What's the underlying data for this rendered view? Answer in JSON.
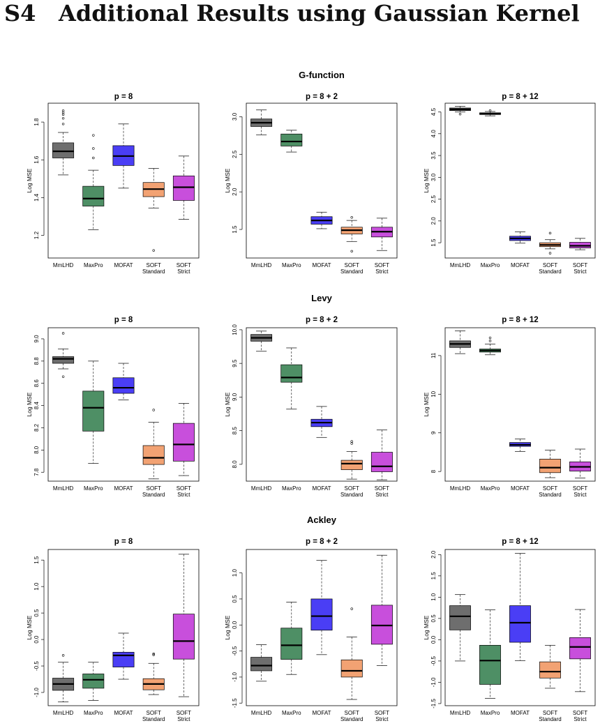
{
  "section": {
    "number": "S4",
    "title": "Additional Results using Gaussian Kernel"
  },
  "y_label": "Log MSE",
  "methods": [
    {
      "line1": "MmLHD",
      "line2": ""
    },
    {
      "line1": "MaxPro",
      "line2": ""
    },
    {
      "line1": "MOFAT",
      "line2": ""
    },
    {
      "line1": "SOFT",
      "line2": "Standard"
    },
    {
      "line1": "SOFT",
      "line2": "Strict"
    }
  ],
  "colors": [
    "#6e6e6e",
    "#4e8f65",
    "#4a3ef5",
    "#f2a273",
    "#c84fdc"
  ],
  "chart_data": [
    {
      "type": "boxplot",
      "group": "G-function",
      "title": "p = 8",
      "ylabel": "Log MSE",
      "ylim": [
        1.08,
        1.9
      ],
      "yticks": [
        1.2,
        1.4,
        1.6,
        1.8
      ],
      "categories": [
        "MmLHD",
        "MaxPro",
        "MOFAT",
        "SOFT Standard",
        "SOFT Strict"
      ],
      "boxes": [
        {
          "whislo": 1.52,
          "q1": 1.61,
          "med": 1.645,
          "q3": 1.69,
          "whishi": 1.745,
          "fliers": [
            1.79,
            1.82,
            1.84,
            1.85,
            1.86
          ]
        },
        {
          "whislo": 1.23,
          "q1": 1.355,
          "med": 1.395,
          "q3": 1.46,
          "whishi": 1.545,
          "fliers": [
            1.61,
            1.66,
            1.73
          ]
        },
        {
          "whislo": 1.45,
          "q1": 1.57,
          "med": 1.62,
          "q3": 1.675,
          "whishi": 1.79,
          "fliers": []
        },
        {
          "whislo": 1.345,
          "q1": 1.405,
          "med": 1.445,
          "q3": 1.48,
          "whishi": 1.555,
          "fliers": [
            1.12
          ]
        },
        {
          "whislo": 1.285,
          "q1": 1.385,
          "med": 1.455,
          "q3": 1.515,
          "whishi": 1.62,
          "fliers": []
        }
      ]
    },
    {
      "type": "boxplot",
      "group": "G-function",
      "title": "p = 8 + 2",
      "ylabel": "Log MSE",
      "ylim": [
        1.12,
        3.18
      ],
      "yticks": [
        1.5,
        2.0,
        2.5,
        3.0
      ],
      "categories": [
        "MmLHD",
        "MaxPro",
        "MOFAT",
        "SOFT Standard",
        "SOFT Strict"
      ],
      "boxes": [
        {
          "whislo": 2.76,
          "q1": 2.87,
          "med": 2.92,
          "q3": 2.97,
          "whishi": 3.09,
          "fliers": []
        },
        {
          "whislo": 2.53,
          "q1": 2.61,
          "med": 2.67,
          "q3": 2.77,
          "whishi": 2.82,
          "fliers": []
        },
        {
          "whislo": 1.51,
          "q1": 1.57,
          "med": 1.62,
          "q3": 1.67,
          "whishi": 1.73,
          "fliers": []
        },
        {
          "whislo": 1.34,
          "q1": 1.44,
          "med": 1.49,
          "q3": 1.53,
          "whishi": 1.62,
          "fliers": [
            1.21,
            1.66
          ]
        },
        {
          "whislo": 1.22,
          "q1": 1.4,
          "med": 1.47,
          "q3": 1.53,
          "whishi": 1.65,
          "fliers": []
        }
      ]
    },
    {
      "type": "boxplot",
      "group": "G-function",
      "title": "p = 8 + 12",
      "ylabel": "Log MSE",
      "ylim": [
        1.15,
        4.7
      ],
      "yticks": [
        1.5,
        2.0,
        2.5,
        3.0,
        3.5,
        4.0,
        4.5
      ],
      "categories": [
        "MmLHD",
        "MaxPro",
        "MOFAT",
        "SOFT Standard",
        "SOFT Strict"
      ],
      "boxes": [
        {
          "whislo": 4.5,
          "q1": 4.53,
          "med": 4.56,
          "q3": 4.59,
          "whishi": 4.63,
          "fliers": [
            4.45
          ]
        },
        {
          "whislo": 4.41,
          "q1": 4.44,
          "med": 4.46,
          "q3": 4.48,
          "whishi": 4.51,
          "fliers": [
            4.53
          ]
        },
        {
          "whislo": 1.49,
          "q1": 1.55,
          "med": 1.6,
          "q3": 1.65,
          "whishi": 1.75,
          "fliers": []
        },
        {
          "whislo": 1.36,
          "q1": 1.41,
          "med": 1.45,
          "q3": 1.5,
          "whishi": 1.57,
          "fliers": [
            1.26,
            1.72
          ]
        },
        {
          "whislo": 1.34,
          "q1": 1.38,
          "med": 1.43,
          "q3": 1.51,
          "whishi": 1.6,
          "fliers": []
        }
      ]
    },
    {
      "type": "boxplot",
      "group": "Levy",
      "title": "p = 8",
      "ylabel": "Log MSE",
      "ylim": [
        7.72,
        9.1
      ],
      "yticks": [
        7.8,
        8.0,
        8.2,
        8.4,
        8.6,
        8.8,
        9.0
      ],
      "categories": [
        "MmLHD",
        "MaxPro",
        "MOFAT",
        "SOFT Standard",
        "SOFT Strict"
      ],
      "boxes": [
        {
          "whislo": 8.73,
          "q1": 8.78,
          "med": 8.82,
          "q3": 8.84,
          "whishi": 8.91,
          "fliers": [
            8.66,
            9.05
          ]
        },
        {
          "whislo": 7.88,
          "q1": 8.17,
          "med": 8.38,
          "q3": 8.53,
          "whishi": 8.8,
          "fliers": []
        },
        {
          "whislo": 8.45,
          "q1": 8.51,
          "med": 8.56,
          "q3": 8.65,
          "whishi": 8.78,
          "fliers": []
        },
        {
          "whislo": 7.74,
          "q1": 7.87,
          "med": 7.93,
          "q3": 8.04,
          "whishi": 8.25,
          "fliers": [
            8.36
          ]
        },
        {
          "whislo": 7.77,
          "q1": 7.9,
          "med": 8.05,
          "q3": 8.24,
          "whishi": 8.42,
          "fliers": []
        }
      ]
    },
    {
      "type": "boxplot",
      "group": "Levy",
      "title": "p = 8 + 2",
      "ylabel": "Log MSE",
      "ylim": [
        7.75,
        10.03
      ],
      "yticks": [
        8.0,
        8.5,
        9.0,
        9.5,
        10.0
      ],
      "categories": [
        "MmLHD",
        "MaxPro",
        "MOFAT",
        "SOFT Standard",
        "SOFT Strict"
      ],
      "boxes": [
        {
          "whislo": 9.68,
          "q1": 9.83,
          "med": 9.88,
          "q3": 9.93,
          "whishi": 9.98,
          "fliers": []
        },
        {
          "whislo": 8.82,
          "q1": 9.22,
          "med": 9.29,
          "q3": 9.48,
          "whishi": 9.73,
          "fliers": []
        },
        {
          "whislo": 8.4,
          "q1": 8.56,
          "med": 8.62,
          "q3": 8.67,
          "whishi": 8.86,
          "fliers": []
        },
        {
          "whislo": 7.78,
          "q1": 7.92,
          "med": 8.01,
          "q3": 8.06,
          "whishi": 8.19,
          "fliers": [
            8.31,
            8.34
          ]
        },
        {
          "whislo": 7.77,
          "q1": 7.89,
          "med": 7.97,
          "q3": 8.18,
          "whishi": 8.51,
          "fliers": []
        }
      ]
    },
    {
      "type": "boxplot",
      "group": "Levy",
      "title": "p = 8 + 12",
      "ylabel": "Log MSE",
      "ylim": [
        7.75,
        11.72
      ],
      "yticks": [
        8,
        9,
        10,
        11
      ],
      "categories": [
        "MmLHD",
        "MaxPro",
        "MOFAT",
        "SOFT Standard",
        "SOFT Strict"
      ],
      "boxes": [
        {
          "whislo": 11.05,
          "q1": 11.21,
          "med": 11.3,
          "q3": 11.38,
          "whishi": 11.64,
          "fliers": []
        },
        {
          "whislo": 11.02,
          "q1": 11.09,
          "med": 11.13,
          "q3": 11.17,
          "whishi": 11.3,
          "fliers": [
            11.38,
            11.46
          ]
        },
        {
          "whislo": 8.52,
          "q1": 8.65,
          "med": 8.69,
          "q3": 8.75,
          "whishi": 8.84,
          "fliers": []
        },
        {
          "whislo": 7.84,
          "q1": 7.97,
          "med": 8.1,
          "q3": 8.32,
          "whishi": 8.55,
          "fliers": []
        },
        {
          "whislo": 7.83,
          "q1": 8.01,
          "med": 8.12,
          "q3": 8.25,
          "whishi": 8.58,
          "fliers": []
        }
      ]
    },
    {
      "type": "boxplot",
      "group": "Ackley",
      "title": "p = 8",
      "ylabel": "Log MSE",
      "ylim": [
        -1.25,
        1.7
      ],
      "yticks": [
        -1.0,
        -0.5,
        0.0,
        0.5,
        1.0,
        1.5
      ],
      "categories": [
        "MmLHD",
        "MaxPro",
        "MOFAT",
        "SOFT Standard",
        "SOFT Strict"
      ],
      "boxes": [
        {
          "whislo": -1.18,
          "q1": -0.96,
          "med": -0.84,
          "q3": -0.73,
          "whishi": -0.43,
          "fliers": [
            -0.3
          ]
        },
        {
          "whislo": -1.15,
          "q1": -0.92,
          "med": -0.76,
          "q3": -0.65,
          "whishi": -0.43,
          "fliers": []
        },
        {
          "whislo": -0.75,
          "q1": -0.52,
          "med": -0.3,
          "q3": -0.24,
          "whishi": 0.12,
          "fliers": []
        },
        {
          "whislo": -1.04,
          "q1": -0.95,
          "med": -0.84,
          "q3": -0.74,
          "whishi": -0.45,
          "fliers": [
            -0.29,
            -0.27
          ]
        },
        {
          "whislo": -1.08,
          "q1": -0.37,
          "med": -0.03,
          "q3": 0.48,
          "whishi": 1.61,
          "fliers": []
        }
      ]
    },
    {
      "type": "boxplot",
      "group": "Ackley",
      "title": "p = 8 + 2",
      "ylabel": "Log MSE",
      "ylim": [
        -1.55,
        1.45
      ],
      "yticks": [
        -1.5,
        -1.0,
        -0.5,
        0.0,
        0.5,
        1.0
      ],
      "categories": [
        "MmLHD",
        "MaxPro",
        "MOFAT",
        "SOFT Standard",
        "SOFT Strict"
      ],
      "boxes": [
        {
          "whislo": -1.08,
          "q1": -0.88,
          "med": -0.78,
          "q3": -0.62,
          "whishi": -0.38,
          "fliers": []
        },
        {
          "whislo": -0.95,
          "q1": -0.66,
          "med": -0.39,
          "q3": -0.06,
          "whishi": 0.44,
          "fliers": []
        },
        {
          "whislo": -0.57,
          "q1": -0.1,
          "med": 0.17,
          "q3": 0.5,
          "whishi": 1.24,
          "fliers": []
        },
        {
          "whislo": -1.43,
          "q1": -1.0,
          "med": -0.88,
          "q3": -0.67,
          "whishi": -0.23,
          "fliers": [
            0.31
          ]
        },
        {
          "whislo": -0.78,
          "q1": -0.37,
          "med": -0.01,
          "q3": 0.38,
          "whishi": 1.34,
          "fliers": []
        }
      ]
    },
    {
      "type": "boxplot",
      "group": "Ackley",
      "title": "p = 8 + 12",
      "ylabel": "Log MSE",
      "ylim": [
        -1.55,
        2.12
      ],
      "yticks": [
        -1.5,
        -1.0,
        -0.5,
        0.0,
        0.5,
        1.0,
        1.5,
        2.0
      ],
      "categories": [
        "MmLHD",
        "MaxPro",
        "MOFAT",
        "SOFT Standard",
        "SOFT Strict"
      ],
      "boxes": [
        {
          "whislo": -0.5,
          "q1": 0.23,
          "med": 0.55,
          "q3": 0.8,
          "whishi": 1.06,
          "fliers": []
        },
        {
          "whislo": -1.38,
          "q1": -1.05,
          "med": -0.49,
          "q3": -0.13,
          "whishi": 0.7,
          "fliers": []
        },
        {
          "whislo": -0.49,
          "q1": -0.06,
          "med": 0.4,
          "q3": 0.8,
          "whishi": 2.03,
          "fliers": []
        },
        {
          "whislo": -1.14,
          "q1": -0.9,
          "med": -0.75,
          "q3": -0.52,
          "whishi": -0.13,
          "fliers": []
        },
        {
          "whislo": -1.22,
          "q1": -0.45,
          "med": -0.17,
          "q3": 0.05,
          "whishi": 0.71,
          "fliers": []
        }
      ]
    }
  ]
}
